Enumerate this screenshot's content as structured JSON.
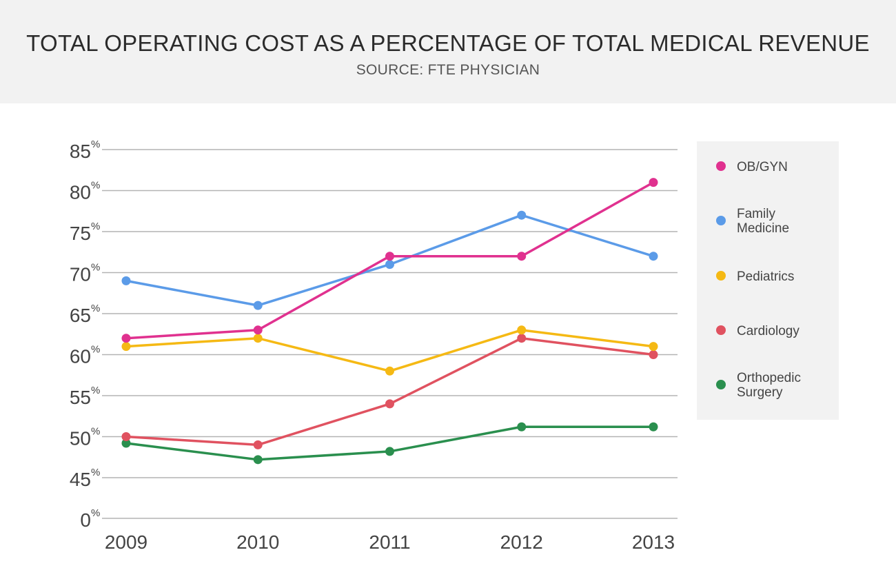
{
  "header": {
    "title": "TOTAL OPERATING COST AS A PERCENTAGE OF TOTAL MEDICAL REVENUE",
    "subtitle": "SOURCE: FTE PHYSICIAN"
  },
  "chart_data": {
    "type": "line",
    "title": "TOTAL OPERATING COST AS A PERCENTAGE OF TOTAL MEDICAL REVENUE",
    "subtitle": "SOURCE: FTE PHYSICIAN",
    "categories": [
      "2009",
      "2010",
      "2011",
      "2012",
      "2013"
    ],
    "y_ticks": [
      {
        "value": 0,
        "label": "0",
        "suffix": "%"
      },
      {
        "value": 45,
        "label": "45",
        "suffix": "%"
      },
      {
        "value": 50,
        "label": "50",
        "suffix": "%"
      },
      {
        "value": 55,
        "label": "55",
        "suffix": "%"
      },
      {
        "value": 60,
        "label": "60",
        "suffix": "%"
      },
      {
        "value": 65,
        "label": "65",
        "suffix": "%"
      },
      {
        "value": 70,
        "label": "70",
        "suffix": "%"
      },
      {
        "value": 75,
        "label": "75",
        "suffix": "%"
      },
      {
        "value": 80,
        "label": "80",
        "suffix": "%"
      },
      {
        "value": 85,
        "label": "85",
        "suffix": "%"
      }
    ],
    "y_axis_note": "broken axis: 0 then 45-85",
    "grid": true,
    "legend_position": "right",
    "series": [
      {
        "name": "OB/GYN",
        "color": "#e0318f",
        "values": [
          62,
          63,
          72,
          72,
          81
        ]
      },
      {
        "name": "Family Medicine",
        "color": "#5b9be8",
        "values": [
          69,
          66,
          71,
          77,
          72
        ]
      },
      {
        "name": "Pediatrics",
        "color": "#f5b914",
        "values": [
          61,
          62,
          58,
          63,
          61
        ]
      },
      {
        "name": "Cardiology",
        "color": "#e05260",
        "values": [
          50,
          49,
          54,
          62,
          60
        ]
      },
      {
        "name": "Orthopedic Surgery",
        "color": "#2a8f4e",
        "values": [
          49.2,
          47.2,
          48.2,
          51.2,
          51.2
        ]
      }
    ]
  }
}
